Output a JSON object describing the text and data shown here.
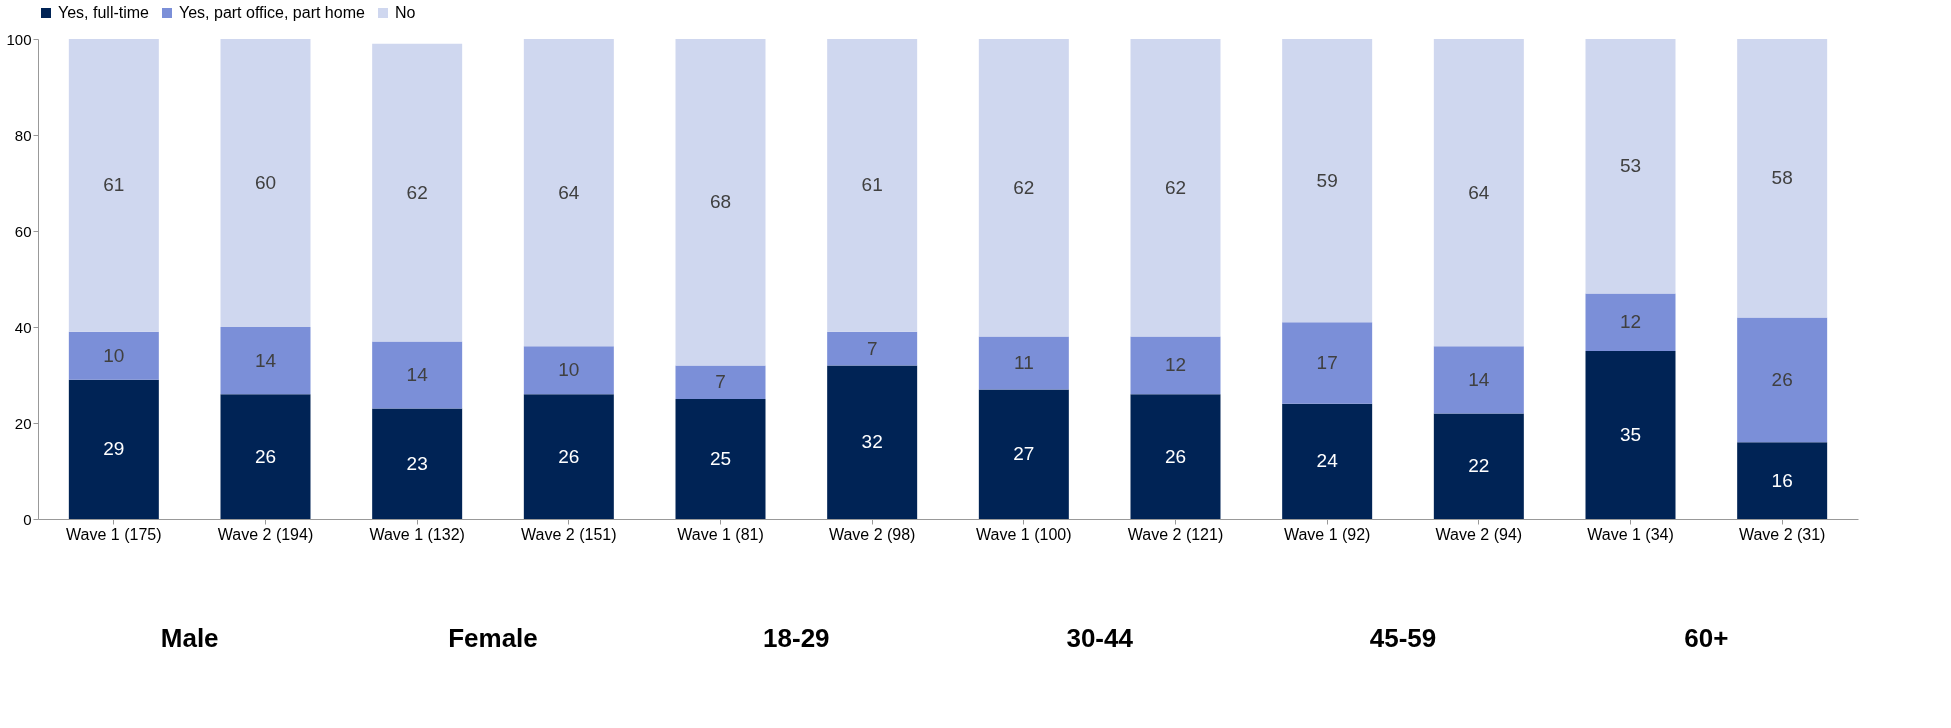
{
  "chart_data": {
    "type": "bar",
    "stacked": true,
    "categories": [
      "Wave 1 (175)",
      "Wave 2 (194)",
      "Wave 1 (132)",
      "Wave 2 (151)",
      "Wave 1 (81)",
      "Wave 2 (98)",
      "Wave 1 (100)",
      "Wave 2 (121)",
      "Wave 1 (92)",
      "Wave 2 (94)",
      "Wave 1 (34)",
      "Wave 2 (31)"
    ],
    "series": [
      {
        "name": "Yes, full-time",
        "color": "#002355",
        "values": [
          29,
          26,
          23,
          26,
          25,
          32,
          27,
          26,
          24,
          22,
          35,
          16
        ]
      },
      {
        "name": "Yes, part office, part home",
        "color": "#7b8fd8",
        "values": [
          10,
          14,
          14,
          10,
          7,
          7,
          11,
          12,
          17,
          14,
          12,
          26
        ]
      },
      {
        "name": "No",
        "color": "#cfd7ef",
        "values": [
          61,
          60,
          62,
          64,
          68,
          61,
          62,
          62,
          59,
          64,
          53,
          58
        ]
      }
    ],
    "ylim": [
      0,
      100
    ],
    "yticks": [
      0,
      20,
      40,
      60,
      80,
      100
    ],
    "grid": false,
    "legend": "top",
    "data_labels": true,
    "annotations": [
      "Male",
      "Female",
      "18-29",
      "30-44",
      "45-59",
      "60+"
    ]
  }
}
